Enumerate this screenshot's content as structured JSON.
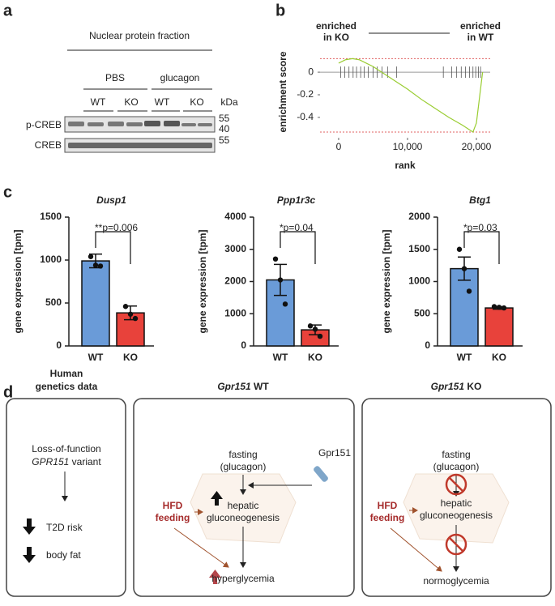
{
  "panel_labels": [
    "a",
    "b",
    "c",
    "d"
  ],
  "blot": {
    "title": "Nuclear protein fraction",
    "groups": [
      "PBS",
      "glucagon"
    ],
    "lanes": [
      "WT",
      "KO",
      "WT",
      "KO"
    ],
    "unit": "kDa",
    "rows": [
      "p-CREB",
      "CREB"
    ],
    "markers": [
      "55",
      "40",
      "55"
    ]
  },
  "chart_data": [
    {
      "type": "line",
      "annotations": [
        "enriched",
        "in KO",
        "enriched",
        "in WT"
      ],
      "y_label": "enrichment score",
      "x_label": "rank",
      "color": "#9acd32",
      "x": [
        0,
        1000,
        2000,
        3000,
        4000,
        5000,
        6000,
        7000,
        8000,
        10000,
        12000,
        14000,
        16000,
        18000,
        19000,
        19500,
        20000,
        20500,
        20900
      ],
      "values": [
        0.08,
        0.11,
        0.12,
        0.11,
        0.08,
        0.05,
        0.01,
        -0.03,
        -0.07,
        -0.15,
        -0.24,
        -0.32,
        -0.4,
        -0.47,
        -0.51,
        -0.53,
        -0.45,
        -0.2,
        0
      ],
      "reference_lines": [
        0.12,
        -0.53
      ],
      "reference_color": "#e06060",
      "hits": [
        300,
        900,
        1500,
        2100,
        2600,
        3200,
        3700,
        4300,
        5000,
        5600,
        6300,
        7100,
        8400,
        15200,
        16400,
        17100,
        17800,
        18400,
        19000,
        19500,
        19900,
        20300,
        20600
      ],
      "xlim": [
        -2700,
        22000
      ],
      "ylim": [
        -0.58,
        0.23
      ],
      "xticks": [
        0,
        {
          "value": 10000,
          "label": "10,000"
        },
        {
          "value": 20000,
          "label": "20,000"
        }
      ],
      "yticks": [
        0,
        -0.2,
        -0.4
      ]
    },
    {
      "type": "bar",
      "title": "Dusp1",
      "y_label": "gene expression [tpm]",
      "categories": [
        "WT",
        "KO"
      ],
      "values": [
        990,
        385
      ],
      "errors": [
        80,
        80
      ],
      "points": [
        [
          1040,
          940,
          930
        ],
        [
          460,
          370,
          320
        ]
      ],
      "colors": [
        "#6a9bd8",
        "#e8423b"
      ],
      "significance": "**",
      "p_label": "p=0.006",
      "ylim": [
        0,
        1500
      ],
      "yticks": [
        0,
        500,
        1000,
        1500
      ]
    },
    {
      "type": "bar",
      "title": "Ppp1r3c",
      "y_label": "gene expression [tpm]",
      "categories": [
        "WT",
        "KO"
      ],
      "values": [
        2050,
        500
      ],
      "errors": [
        480,
        150
      ],
      "points": [
        [
          2700,
          2050,
          1300
        ],
        [
          620,
          520,
          300
        ]
      ],
      "colors": [
        "#6a9bd8",
        "#e8423b"
      ],
      "significance": "*",
      "p_label": "p=0.04",
      "ylim": [
        0,
        4000
      ],
      "yticks": [
        0,
        1000,
        2000,
        3000,
        4000
      ]
    },
    {
      "type": "bar",
      "title": "Btg1",
      "y_label": "gene expression [tpm]",
      "categories": [
        "WT",
        "KO"
      ],
      "values": [
        1200,
        590
      ],
      "errors": [
        180,
        20
      ],
      "points": [
        [
          1500,
          1200,
          850
        ],
        [
          610,
          600,
          590
        ]
      ],
      "colors": [
        "#6a9bd8",
        "#e8423b"
      ],
      "significance": "*",
      "p_label": "p=0.03",
      "ylim": [
        0,
        2000
      ],
      "yticks": [
        0,
        500,
        1000,
        1500,
        2000
      ]
    }
  ],
  "diagram": {
    "left": {
      "title": [
        "Human",
        "genetics data"
      ],
      "line1": "Loss-of-function",
      "gene": "GPR151",
      "gene_suffix": "variant",
      "effects": [
        "T2D risk",
        "body fat"
      ]
    },
    "middle": {
      "gene": "Gpr151",
      "suffix": "WT",
      "fasting": [
        "fasting",
        "(glucagon)"
      ],
      "receptor": "Gpr151",
      "liver": [
        "hepatic",
        "gluconeogenesis"
      ],
      "diet": [
        "HFD",
        "feeding"
      ],
      "outcome": "hyperglycemia"
    },
    "right": {
      "gene": "Gpr151",
      "suffix": "KO",
      "fasting": [
        "fasting",
        "(glucagon)"
      ],
      "liver": [
        "hepatic",
        "gluconeogenesis"
      ],
      "diet": [
        "HFD",
        "feeding"
      ],
      "outcome": "normoglycemia"
    }
  }
}
